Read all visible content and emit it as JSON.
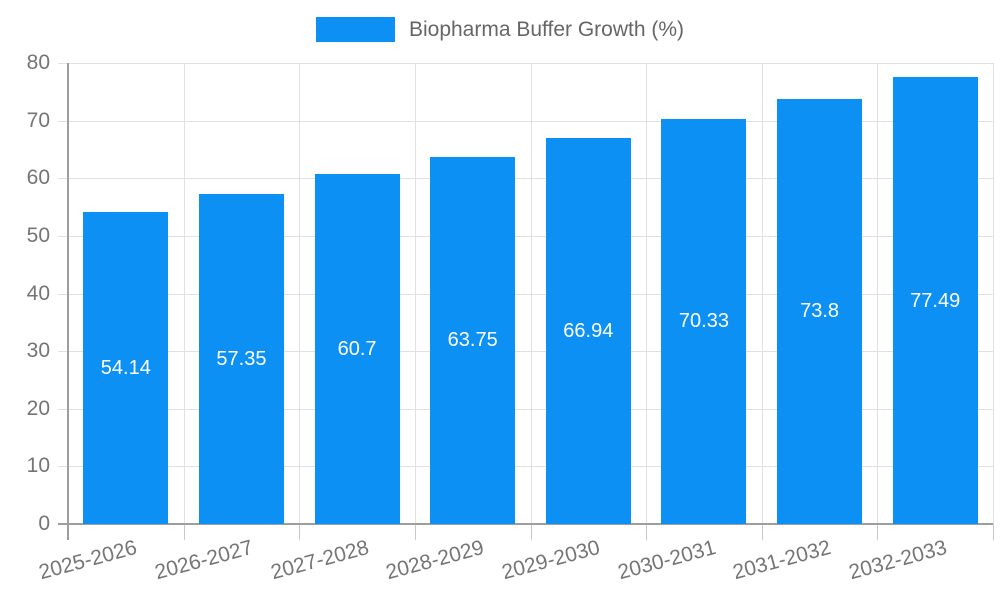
{
  "chart_data": {
    "type": "bar",
    "title": "",
    "xlabel": "",
    "ylabel": "",
    "legend": "Biopharma Buffer Growth (%)",
    "legend_position": "top-center",
    "categories": [
      "2025-2026",
      "2026-2027",
      "2027-2028",
      "2028-2029",
      "2029-2030",
      "2030-2031",
      "2031-2032",
      "2032-2033"
    ],
    "values": [
      54.14,
      57.35,
      60.7,
      63.75,
      66.94,
      70.33,
      73.8,
      77.49
    ],
    "value_labels": [
      "54.14",
      "57.35",
      "60.7",
      "63.75",
      "66.94",
      "70.33",
      "73.8",
      "77.49"
    ],
    "ylim": [
      0,
      80
    ],
    "ytick_step": 10,
    "grid": true,
    "colors": {
      "bar": "#0d90f3",
      "value_label": "#ffffff",
      "axis_text": "#757575",
      "legend_text": "#666666",
      "gridline": "#e0e0e0",
      "axis_line": "#9e9e9e",
      "tick": "#c9c9c9"
    }
  }
}
